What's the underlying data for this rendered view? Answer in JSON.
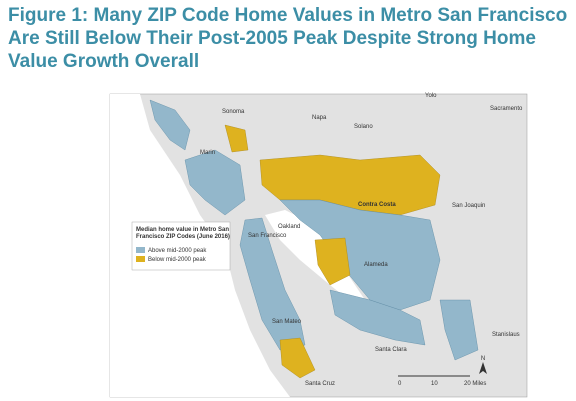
{
  "title": "Figure 1: Many ZIP Code Home Values in Metro San Francisco Are Still Below Their Post-2005 Peak Despite Strong Home Value Growth Overall",
  "map": {
    "labels": [
      "Yolo",
      "Sacramento",
      "Sonoma",
      "Napa",
      "Solano",
      "Marin",
      "Contra Costa",
      "San Joaquin",
      "Oakland",
      "San Francisco",
      "Alameda",
      "San Mateo",
      "Stanislaus",
      "Santa Clara",
      "Santa Cruz"
    ],
    "legend": {
      "title": "Median home value in Metro San Francisco ZIP Codes (June 2016)",
      "items": [
        {
          "name": "Above mid-2000 peak",
          "color": "#93b7cb"
        },
        {
          "name": "Below mid-2000 peak",
          "color": "#deb21f"
        }
      ]
    },
    "scale": [
      "0",
      "10",
      "20 Miles"
    ],
    "north": "N"
  }
}
